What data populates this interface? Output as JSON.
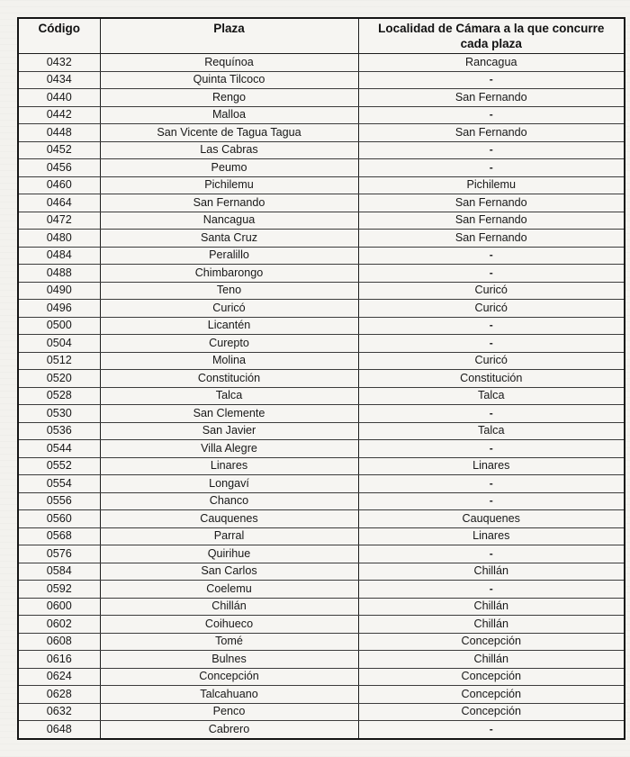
{
  "colors": {
    "page_bg": "#f3f2ee",
    "table_bg": "#f6f5f2",
    "border": "#1d1d1d",
    "text": "#171717"
  },
  "table": {
    "columns": [
      {
        "key": "codigo",
        "label": "Código"
      },
      {
        "key": "plaza",
        "label": "Plaza"
      },
      {
        "key": "localidad",
        "label": "Localidad de Cámara a la que concurre cada plaza"
      }
    ],
    "rows": [
      {
        "codigo": "0432",
        "plaza": "Requínoa",
        "localidad": "Rancagua"
      },
      {
        "codigo": "0434",
        "plaza": "Quinta Tilcoco",
        "localidad": "-"
      },
      {
        "codigo": "0440",
        "plaza": "Rengo",
        "localidad": "San Fernando"
      },
      {
        "codigo": "0442",
        "plaza": "Malloa",
        "localidad": "-"
      },
      {
        "codigo": "0448",
        "plaza": "San Vicente de Tagua Tagua",
        "localidad": "San Fernando"
      },
      {
        "codigo": "0452",
        "plaza": "Las Cabras",
        "localidad": "-"
      },
      {
        "codigo": "0456",
        "plaza": "Peumo",
        "localidad": "-"
      },
      {
        "codigo": "0460",
        "plaza": "Pichilemu",
        "localidad": "Pichilemu"
      },
      {
        "codigo": "0464",
        "plaza": "San Fernando",
        "localidad": "San Fernando"
      },
      {
        "codigo": "0472",
        "plaza": "Nancagua",
        "localidad": "San Fernando"
      },
      {
        "codigo": "0480",
        "plaza": "Santa Cruz",
        "localidad": "San Fernando"
      },
      {
        "codigo": "0484",
        "plaza": "Peralillo",
        "localidad": "-"
      },
      {
        "codigo": "0488",
        "plaza": "Chimbarongo",
        "localidad": "-"
      },
      {
        "codigo": "0490",
        "plaza": "Teno",
        "localidad": "Curicó"
      },
      {
        "codigo": "0496",
        "plaza": "Curicó",
        "localidad": "Curicó"
      },
      {
        "codigo": "0500",
        "plaza": "Licantén",
        "localidad": "-"
      },
      {
        "codigo": "0504",
        "plaza": "Curepto",
        "localidad": "-"
      },
      {
        "codigo": "0512",
        "plaza": "Molina",
        "localidad": "Curicó"
      },
      {
        "codigo": "0520",
        "plaza": "Constitución",
        "localidad": "Constitución"
      },
      {
        "codigo": "0528",
        "plaza": "Talca",
        "localidad": "Talca"
      },
      {
        "codigo": "0530",
        "plaza": "San Clemente",
        "localidad": "-"
      },
      {
        "codigo": "0536",
        "plaza": "San Javier",
        "localidad": "Talca"
      },
      {
        "codigo": "0544",
        "plaza": "Villa Alegre",
        "localidad": "-"
      },
      {
        "codigo": "0552",
        "plaza": "Linares",
        "localidad": "Linares"
      },
      {
        "codigo": "0554",
        "plaza": "Longaví",
        "localidad": "-"
      },
      {
        "codigo": "0556",
        "plaza": "Chanco",
        "localidad": "-"
      },
      {
        "codigo": "0560",
        "plaza": "Cauquenes",
        "localidad": "Cauquenes"
      },
      {
        "codigo": "0568",
        "plaza": "Parral",
        "localidad": "Linares"
      },
      {
        "codigo": "0576",
        "plaza": "Quirihue",
        "localidad": "-"
      },
      {
        "codigo": "0584",
        "plaza": "San Carlos",
        "localidad": "Chillán"
      },
      {
        "codigo": "0592",
        "plaza": "Coelemu",
        "localidad": "-"
      },
      {
        "codigo": "0600",
        "plaza": "Chillán",
        "localidad": "Chillán"
      },
      {
        "codigo": "0602",
        "plaza": "Coihueco",
        "localidad": "Chillán"
      },
      {
        "codigo": "0608",
        "plaza": "Tomé",
        "localidad": "Concepción"
      },
      {
        "codigo": "0616",
        "plaza": "Bulnes",
        "localidad": "Chillán"
      },
      {
        "codigo": "0624",
        "plaza": "Concepción",
        "localidad": "Concepción"
      },
      {
        "codigo": "0628",
        "plaza": "Talcahuano",
        "localidad": "Concepción"
      },
      {
        "codigo": "0632",
        "plaza": "Penco",
        "localidad": "Concepción"
      },
      {
        "codigo": "0648",
        "plaza": "Cabrero",
        "localidad": "-"
      }
    ]
  }
}
